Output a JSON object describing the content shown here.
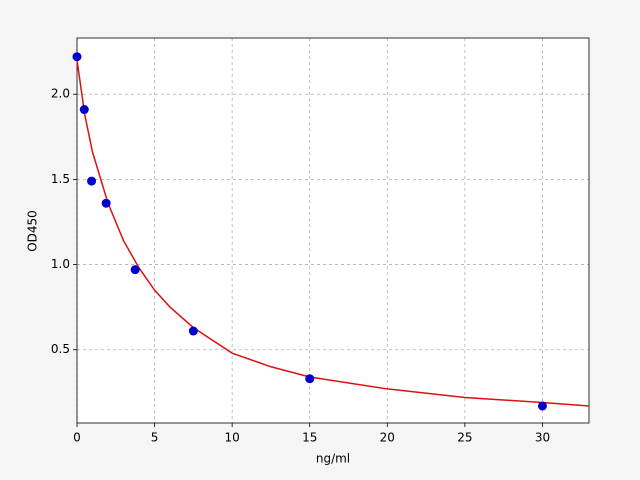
{
  "chart_data": {
    "type": "scatter",
    "xlabel": "ng/ml",
    "ylabel": "OD450",
    "xlim": [
      0,
      33
    ],
    "ylim": [
      0.07,
      2.33
    ],
    "xticks": [
      0,
      5,
      10,
      15,
      20,
      25,
      30
    ],
    "yticks": [
      0.5,
      {
        "value": 1,
        "label": "1.0"
      },
      1.5,
      {
        "value": 2,
        "label": "2.0"
      }
    ],
    "grid": true,
    "series": [
      {
        "style": "marker",
        "color": "#0000cc",
        "x": [
          0,
          0.47,
          0.94,
          1.88,
          3.75,
          7.5,
          15,
          30
        ],
        "values": [
          2.22,
          1.91,
          1.49,
          1.36,
          0.97,
          0.61,
          0.33,
          0.17
        ]
      },
      {
        "style": "line",
        "color": "#dd1111",
        "x": [
          0,
          0.5,
          1,
          2,
          3,
          4,
          5,
          6,
          7.5,
          10,
          12.5,
          15,
          20,
          25,
          30,
          33
        ],
        "values": [
          2.2,
          1.88,
          1.66,
          1.36,
          1.14,
          0.98,
          0.85,
          0.75,
          0.63,
          0.48,
          0.4,
          0.34,
          0.27,
          0.22,
          0.19,
          0.17
        ]
      }
    ]
  }
}
